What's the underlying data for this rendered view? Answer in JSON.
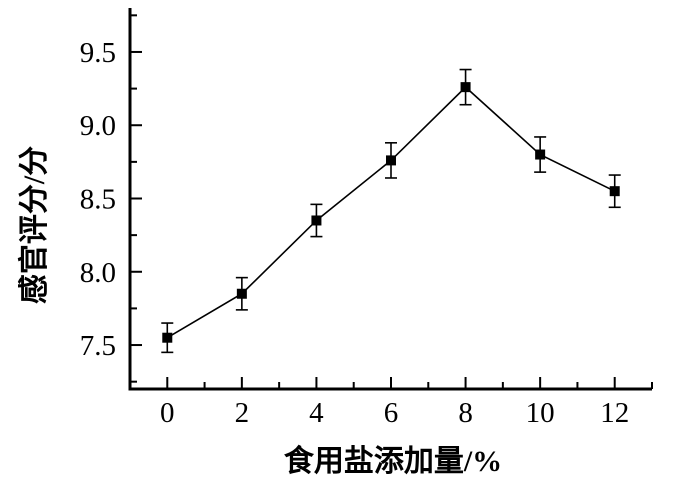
{
  "chart_data": {
    "type": "line",
    "title": "",
    "xlabel": "食用盐添加量/%",
    "ylabel": "感官评分/分",
    "x": [
      0,
      2,
      4,
      6,
      8,
      10,
      12
    ],
    "series": [
      {
        "name": "sensory-score",
        "values": [
          7.55,
          7.85,
          8.35,
          8.76,
          9.26,
          8.8,
          8.55
        ],
        "errors": [
          0.1,
          0.11,
          0.11,
          0.12,
          0.12,
          0.12,
          0.11
        ]
      }
    ],
    "xlim": [
      -1,
      13
    ],
    "ylim": [
      7.2,
      9.8
    ],
    "x_major_ticks": [
      0,
      2,
      4,
      6,
      8,
      10,
      12
    ],
    "x_minor_ticks": [
      1,
      3,
      5,
      7,
      9,
      11,
      13
    ],
    "x_tick_labels": [
      "0",
      "2",
      "4",
      "6",
      "8",
      "10",
      "12"
    ],
    "y_major_ticks": [
      7.5,
      8.0,
      8.5,
      9.0,
      9.5
    ],
    "y_minor_ticks": [
      7.25,
      7.75,
      8.25,
      8.75,
      9.25,
      9.75
    ],
    "y_tick_labels": [
      "7.5",
      "8.0",
      "8.5",
      "9.0",
      "9.5"
    ],
    "marker": "filled-square",
    "error_bars": true,
    "grid": false,
    "legend": null,
    "line_color": "#000000",
    "background_color": "#ffffff"
  }
}
